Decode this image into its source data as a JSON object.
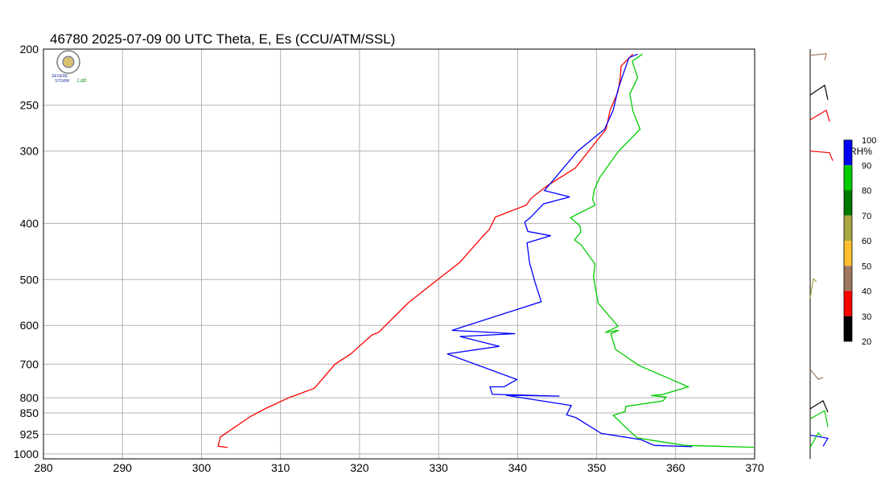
{
  "chart_data": {
    "type": "line",
    "title": "46780  2025-07-09 00 UTC  Theta, E, Es (CCU/ATM/SSL)",
    "xlabel": "",
    "ylabel": "",
    "xlim": [
      280,
      370
    ],
    "ylim": [
      1020,
      200
    ],
    "y_scale": "log",
    "grid": true,
    "x_ticks": [
      280,
      290,
      300,
      310,
      320,
      330,
      340,
      350,
      360,
      370
    ],
    "y_ticks": [
      200,
      250,
      300,
      400,
      500,
      600,
      700,
      800,
      850,
      925,
      1000
    ],
    "series": [
      {
        "color": "#ff0000",
        "points": [
          [
            303.3,
            975
          ],
          [
            302.1,
            970
          ],
          [
            302.4,
            935
          ],
          [
            306.2,
            862
          ],
          [
            308.1,
            835
          ],
          [
            311.2,
            798
          ],
          [
            311.6,
            795
          ],
          [
            314.3,
            770
          ],
          [
            316.9,
            700
          ],
          [
            318.9,
            672
          ],
          [
            319.9,
            653
          ],
          [
            321.6,
            623
          ],
          [
            322.4,
            617
          ],
          [
            326.2,
            548
          ],
          [
            329.9,
            500
          ],
          [
            332.7,
            467
          ],
          [
            335.6,
            421
          ],
          [
            336.4,
            410
          ],
          [
            337.2,
            390
          ],
          [
            341.1,
            372
          ],
          [
            341.7,
            362
          ],
          [
            343.8,
            344
          ],
          [
            347.3,
            321
          ],
          [
            351.2,
            275
          ],
          [
            351.7,
            255
          ],
          [
            352.7,
            237
          ],
          [
            353.0,
            224
          ],
          [
            353.1,
            214
          ],
          [
            354.6,
            204
          ]
        ]
      },
      {
        "color": "#0000ff",
        "points": [
          [
            362.1,
            972
          ],
          [
            357.3,
            967
          ],
          [
            355.6,
            945
          ],
          [
            350.6,
            922
          ],
          [
            347.4,
            866
          ],
          [
            346.2,
            856
          ],
          [
            346.8,
            825
          ],
          [
            338.5,
            792
          ],
          [
            345.3,
            795
          ],
          [
            336.8,
            789
          ],
          [
            336.5,
            766
          ],
          [
            338.3,
            766
          ],
          [
            339.9,
            744
          ],
          [
            331.1,
            672
          ],
          [
            337.7,
            652
          ],
          [
            332.7,
            627
          ],
          [
            339.7,
            620
          ],
          [
            331.7,
            612
          ],
          [
            343.0,
            546
          ],
          [
            342.2,
            505
          ],
          [
            341.5,
            467
          ],
          [
            341.2,
            432
          ],
          [
            344.2,
            420
          ],
          [
            341.3,
            413
          ],
          [
            340.9,
            398
          ],
          [
            341.6,
            391
          ],
          [
            343.3,
            370
          ],
          [
            346.6,
            360
          ],
          [
            343.4,
            351
          ],
          [
            347.6,
            300
          ],
          [
            351.0,
            275
          ],
          [
            352.1,
            255
          ],
          [
            352.7,
            235
          ],
          [
            353.4,
            220
          ],
          [
            354.1,
            207
          ],
          [
            355.2,
            204
          ]
        ]
      },
      {
        "color": "#00cc00",
        "points": [
          [
            369.9,
            974
          ],
          [
            361.2,
            967
          ],
          [
            356.9,
            947
          ],
          [
            355.1,
            938
          ],
          [
            352.1,
            858
          ],
          [
            353.6,
            845
          ],
          [
            353.7,
            828
          ],
          [
            358.4,
            810
          ],
          [
            358.8,
            798
          ],
          [
            356.9,
            793
          ],
          [
            358.3,
            790
          ],
          [
            361.6,
            766
          ],
          [
            355.3,
            703
          ],
          [
            352.4,
            660
          ],
          [
            351.8,
            620
          ],
          [
            352.8,
            612
          ],
          [
            351.1,
            617
          ],
          [
            352.7,
            602
          ],
          [
            350.2,
            549
          ],
          [
            349.6,
            495
          ],
          [
            349.8,
            470
          ],
          [
            348.0,
            435
          ],
          [
            347.2,
            427
          ],
          [
            348.0,
            414
          ],
          [
            347.9,
            404
          ],
          [
            346.7,
            391
          ],
          [
            349.8,
            372
          ],
          [
            349.5,
            364
          ],
          [
            349.7,
            350
          ],
          [
            350.4,
            333
          ],
          [
            352.7,
            301
          ],
          [
            355.5,
            275
          ],
          [
            354.6,
            256
          ],
          [
            354.2,
            239
          ],
          [
            355.2,
            224
          ],
          [
            354.5,
            210
          ],
          [
            355.8,
            204
          ]
        ]
      }
    ],
    "legend": {
      "label": "RH%",
      "ticks": [
        "100",
        "90",
        "80",
        "70",
        "60",
        "50",
        "40",
        "30",
        "20"
      ],
      "colors": [
        "#0000ff",
        "#00cc00",
        "#007700",
        "#a8a840",
        "#ffc030",
        "#a07860",
        "#ff0000",
        "#000000"
      ]
    },
    "wind_barbs": [
      {
        "pressure": 205,
        "color": "#a07860"
      },
      {
        "pressure": 240,
        "color": "#000000"
      },
      {
        "pressure": 265,
        "color": "#ff0000"
      },
      {
        "pressure": 300,
        "color": "#ff0000"
      },
      {
        "pressure": 538,
        "color": "#a8a840"
      },
      {
        "pressure": 715,
        "color": "#a07860"
      },
      {
        "pressure": 836,
        "color": "#000000"
      },
      {
        "pressure": 870,
        "color": "#00cc00"
      },
      {
        "pressure": 928,
        "color": "#0000ff"
      },
      {
        "pressure": 975,
        "color": "#00cc00"
      }
    ]
  },
  "logo": {
    "top": "SEVERE",
    "middle": "STORM",
    "bottom": "Lab"
  }
}
